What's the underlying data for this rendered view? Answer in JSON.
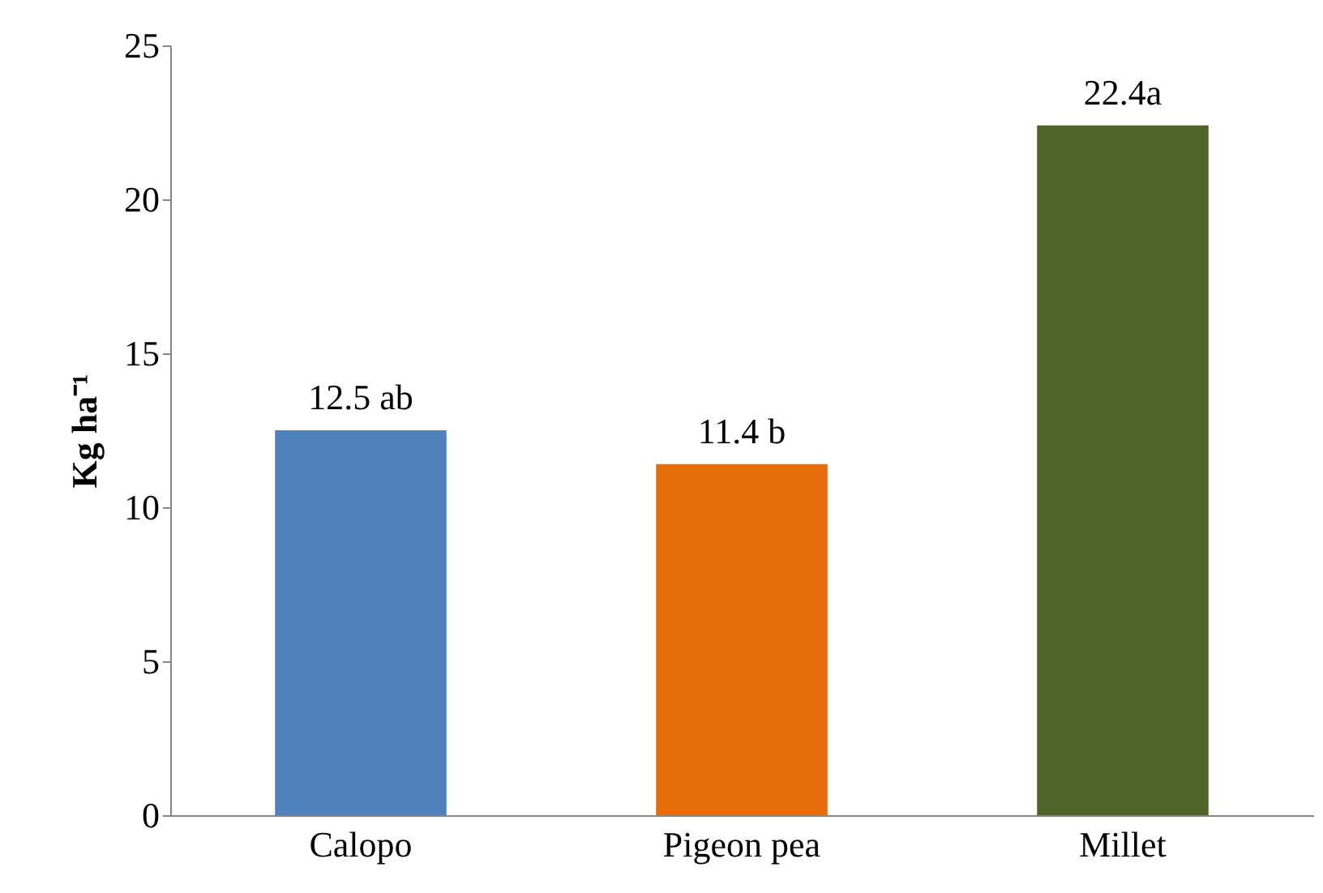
{
  "chart_data": {
    "type": "bar",
    "ylabel": "Kg ha⁻¹",
    "categories": [
      "Calopo",
      "Pigeon pea",
      "Millet"
    ],
    "values": [
      12.5,
      11.4,
      22.4
    ],
    "colors": [
      "#4f81bd",
      "#e46c0a",
      "#4f6228"
    ],
    "value_labels": [
      "12.5 ab",
      "11.4 b",
      "22.4a"
    ],
    "ylim": [
      0,
      25
    ],
    "yticks": [
      0,
      5,
      10,
      15,
      20,
      25
    ],
    "grid": false
  }
}
